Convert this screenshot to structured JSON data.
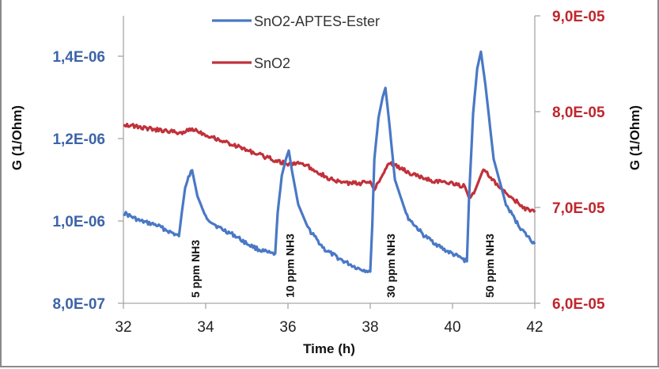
{
  "chart_data": {
    "type": "line",
    "title": "",
    "xlabel": "Time (h)",
    "ylabel_left": "G (1/Ohm)",
    "ylabel_right": "G (1/Ohm)",
    "xlim": [
      32,
      42
    ],
    "ylim_left": [
      8e-07,
      1.5e-06
    ],
    "ylim_right": [
      6e-05,
      9e-05
    ],
    "x_ticks": [
      "32",
      "34",
      "36",
      "38",
      "40",
      "42"
    ],
    "x_tick_values": [
      32,
      34,
      36,
      38,
      40,
      42
    ],
    "y_left_ticks": [
      "8,0E-07",
      "1,0E-06",
      "1,2E-06",
      "1,4E-06"
    ],
    "y_left_tick_values": [
      8e-07,
      1e-06,
      1.2e-06,
      1.4e-06
    ],
    "y_right_ticks": [
      "6,0E-05",
      "7,0E-05",
      "8,0E-05",
      "9,0E-05"
    ],
    "y_right_tick_values": [
      6e-05,
      7e-05,
      8e-05,
      9e-05
    ],
    "grid": false,
    "legend_position": "top-center",
    "colors": {
      "left_axis": "#3d64a8",
      "right_axis": "#c0262d",
      "blue_series": "#4a78c6",
      "red_series": "#c0313a"
    },
    "series": [
      {
        "name": "SnO2-APTES-Ester",
        "axis": "left",
        "color": "#4a78c6",
        "x": [
          32.0,
          32.4,
          32.8,
          33.1,
          33.35,
          33.42,
          33.5,
          33.58,
          33.67,
          33.8,
          34.0,
          34.3,
          34.7,
          35.0,
          35.3,
          35.6,
          35.69,
          35.75,
          35.85,
          35.95,
          36.02,
          36.1,
          36.25,
          36.5,
          36.9,
          37.3,
          37.7,
          38.0,
          38.05,
          38.1,
          38.2,
          38.3,
          38.37,
          38.45,
          38.6,
          38.9,
          39.3,
          39.8,
          40.2,
          40.35,
          40.4,
          40.5,
          40.6,
          40.69,
          40.8,
          41.0,
          41.3,
          41.6,
          41.8,
          42.0
        ],
        "values": [
          1.02e-06,
          1e-06,
          9.9e-07,
          9.75e-07,
          9.63e-07,
          1.02e-06,
          1.08e-06,
          1.105e-06,
          1.123e-06,
          1.06e-06,
          1.01e-06,
          9.85e-07,
          9.65e-07,
          9.45e-07,
          9.3e-07,
          9.2e-07,
          9.21e-07,
          1.02e-06,
          1.11e-06,
          1.15e-06,
          1.171e-06,
          1.12e-06,
          1.04e-06,
          9.8e-07,
          9.3e-07,
          9.05e-07,
          8.85e-07,
          8.77e-07,
          9.9e-07,
          1.15e-06,
          1.25e-06,
          1.3e-06,
          1.323e-06,
          1.25e-06,
          1.1e-06,
          1.01e-06,
          9.65e-07,
          9.3e-07,
          9.1e-07,
          9.02e-07,
          1.05e-06,
          1.26e-06,
          1.37e-06,
          1.411e-06,
          1.33e-06,
          1.15e-06,
          1.04e-06,
          9.9e-07,
          9.65e-07,
          9.44e-07
        ]
      },
      {
        "name": "SnO2",
        "axis": "right",
        "color": "#c0313a",
        "x": [
          32.0,
          32.5,
          33.0,
          33.4,
          33.7,
          34.0,
          34.5,
          35.0,
          35.5,
          36.0,
          36.3,
          36.7,
          37.0,
          37.3,
          37.7,
          38.0,
          38.1,
          38.25,
          38.45,
          38.6,
          39.0,
          39.5,
          40.0,
          40.3,
          40.4,
          40.55,
          40.75,
          40.9,
          41.2,
          41.5,
          41.8,
          42.0
        ],
        "values": [
          7.87e-05,
          7.83e-05,
          7.8e-05,
          7.78e-05,
          7.82e-05,
          7.76e-05,
          7.68e-05,
          7.6e-05,
          7.52e-05,
          7.45e-05,
          7.47e-05,
          7.38e-05,
          7.3e-05,
          7.26e-05,
          7.25e-05,
          7.27e-05,
          7.2e-05,
          7.3e-05,
          7.47e-05,
          7.44e-05,
          7.35e-05,
          7.28e-05,
          7.25e-05,
          7.22e-05,
          7.1e-05,
          7.18e-05,
          7.4e-05,
          7.32e-05,
          7.18e-05,
          7.08e-05,
          6.98e-05,
          6.95e-05
        ]
      }
    ],
    "annotations": [
      {
        "text": "5 ppm NH3",
        "x": 33.75
      },
      {
        "text": "10 ppm NH3",
        "x": 36.05
      },
      {
        "text": "30 ppm NH3",
        "x": 38.5
      },
      {
        "text": "50 ppm NH3",
        "x": 40.9
      }
    ]
  }
}
